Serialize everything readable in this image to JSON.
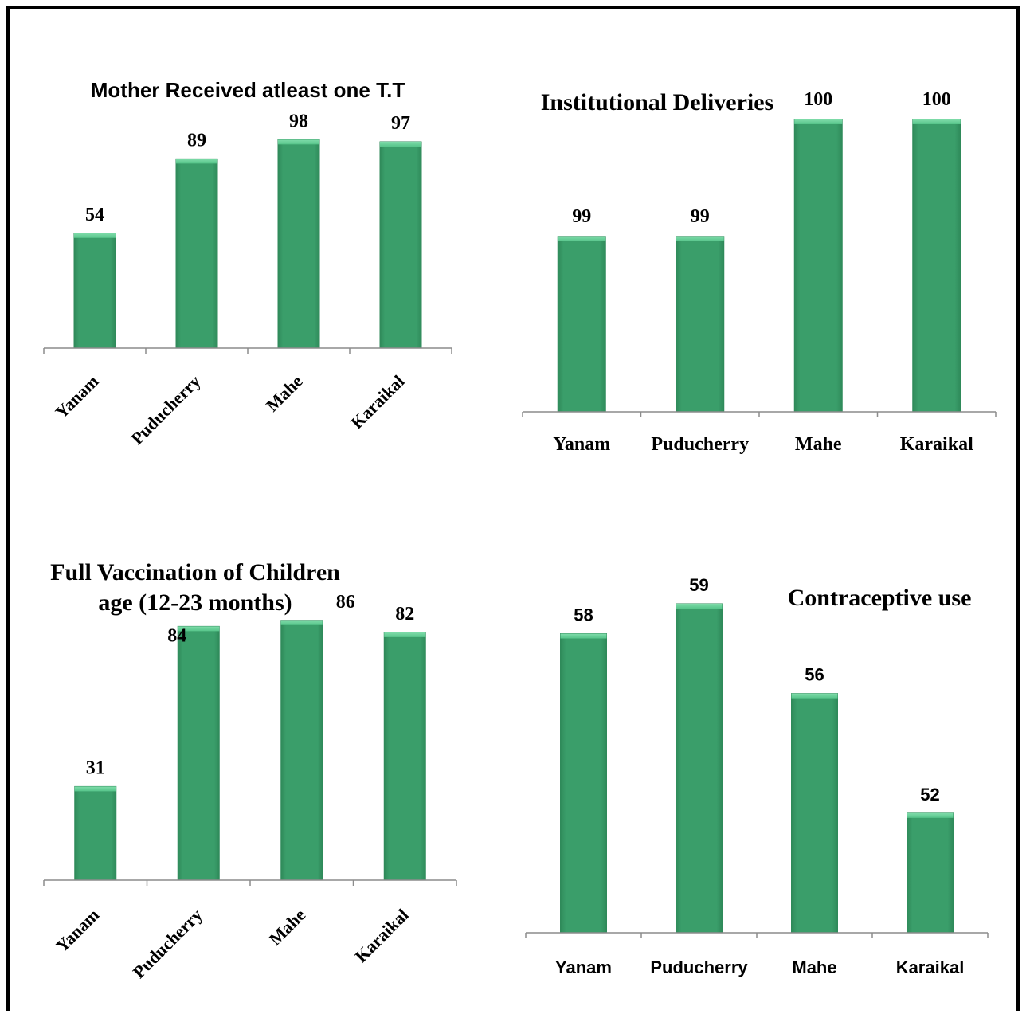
{
  "colors": {
    "bar": "#3a9e6a",
    "bar_dark": "#2f8a5a",
    "bar_top": "#56c48a",
    "axis": "#8c8c8c",
    "text": "#000000"
  },
  "chart_data": [
    {
      "type": "bar",
      "title": "Mother Received atleast one T.T",
      "categories": [
        "Yanam",
        "Puducherry",
        "Mahe",
        "Karaikal"
      ],
      "values": [
        54,
        89,
        98,
        97
      ],
      "ylim": [
        0,
        100
      ]
    },
    {
      "type": "bar",
      "title": "Institutional Deliveries",
      "categories": [
        "Yanam",
        "Puducherry",
        "Mahe",
        "Karaikal"
      ],
      "values": [
        99,
        99,
        100,
        100
      ],
      "ylim": [
        97.5,
        100
      ]
    },
    {
      "type": "bar",
      "title": "Full Vaccination of Children age (12-23 months)",
      "title_lines": [
        "Full Vaccination of Children",
        "age (12-23 months)"
      ],
      "categories": [
        "Yanam",
        "Puducherry",
        "Mahe",
        "Karaikal"
      ],
      "values": [
        31,
        84,
        86,
        82
      ],
      "ylim": [
        0,
        87
      ]
    },
    {
      "type": "bar",
      "title": "Contraceptive use",
      "categories": [
        "Yanam",
        "Puducherry",
        "Mahe",
        "Karaikal"
      ],
      "values": [
        58,
        59,
        56,
        52
      ],
      "ylim": [
        48,
        59
      ]
    }
  ]
}
